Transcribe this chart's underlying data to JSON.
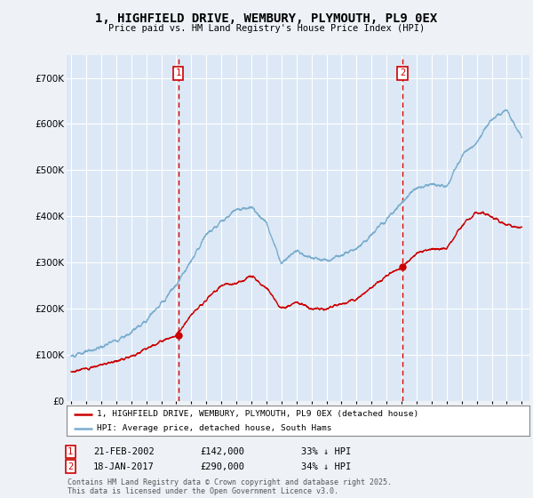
{
  "title": "1, HIGHFIELD DRIVE, WEMBURY, PLYMOUTH, PL9 0EX",
  "subtitle": "Price paid vs. HM Land Registry's House Price Index (HPI)",
  "background_color": "#eef2f7",
  "plot_bg_color": "#dce8f5",
  "grid_color": "#ffffff",
  "sale1_price": 142000,
  "sale1_label": "21-FEB-2002",
  "sale1_hpi_pct": "33% ↓ HPI",
  "sale2_price": 290000,
  "sale2_label": "18-JAN-2017",
  "sale2_hpi_pct": "34% ↓ HPI",
  "red_line_color": "#cc0000",
  "blue_line_color": "#7aadcf",
  "dashed_line_color": "#cc0000",
  "legend_label_red": "1, HIGHFIELD DRIVE, WEMBURY, PLYMOUTH, PL9 0EX (detached house)",
  "legend_label_blue": "HPI: Average price, detached house, South Hams",
  "footer": "Contains HM Land Registry data © Crown copyright and database right 2025.\nThis data is licensed under the Open Government Licence v3.0.",
  "ylim": [
    0,
    750000
  ],
  "yticks": [
    0,
    100000,
    200000,
    300000,
    400000,
    500000,
    600000,
    700000
  ],
  "sale1_x": 2002.13,
  "sale2_x": 2017.05,
  "hpi_knots_x": [
    1995,
    1996,
    1997,
    1998,
    1999,
    2000,
    2001,
    2002,
    2003,
    2004,
    2005,
    2006,
    2007,
    2008,
    2009,
    2010,
    2011,
    2012,
    2013,
    2014,
    2015,
    2016,
    2017,
    2018,
    2019,
    2020,
    2021,
    2022,
    2023,
    2024,
    2025
  ],
  "hpi_knots_y": [
    97000,
    108000,
    118000,
    130000,
    148000,
    175000,
    210000,
    250000,
    305000,
    360000,
    390000,
    415000,
    420000,
    385000,
    300000,
    325000,
    310000,
    305000,
    315000,
    330000,
    360000,
    395000,
    430000,
    460000,
    470000,
    465000,
    530000,
    560000,
    610000,
    630000,
    570000
  ],
  "prop_knots_x": [
    1995,
    1996,
    1997,
    1998,
    1999,
    2000,
    2001,
    2002,
    2003,
    2004,
    2005,
    2006,
    2007,
    2008,
    2009,
    2010,
    2011,
    2012,
    2013,
    2014,
    2015,
    2016,
    2017,
    2018,
    2019,
    2020,
    2021,
    2022,
    2023,
    2024,
    2025
  ],
  "prop_knots_y": [
    63000,
    70000,
    78000,
    87000,
    97000,
    112000,
    130000,
    142000,
    185000,
    220000,
    250000,
    255000,
    270000,
    245000,
    200000,
    215000,
    200000,
    200000,
    210000,
    220000,
    245000,
    270000,
    290000,
    320000,
    330000,
    330000,
    380000,
    410000,
    400000,
    380000,
    375000
  ],
  "hpi_noise_scale": 8000,
  "prop_noise_scale": 6000,
  "hpi_seed": 12,
  "prop_seed": 7
}
